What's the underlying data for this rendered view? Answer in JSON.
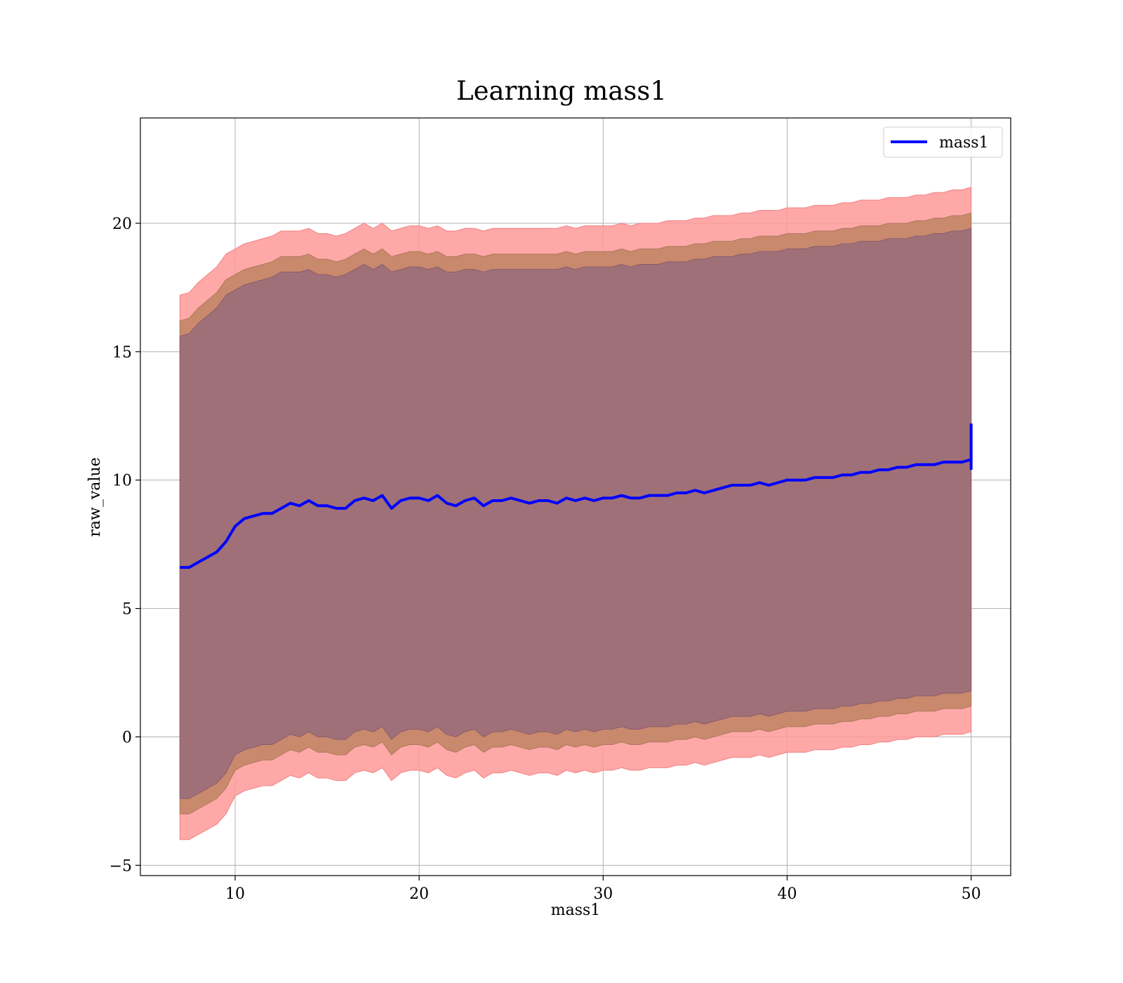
{
  "chart_data": {
    "type": "line",
    "title": "Learning mass1",
    "xlabel": "mass1",
    "ylabel": "raw_value",
    "xlim": [
      4.85,
      52.15
    ],
    "ylim": [
      -5.4,
      24.1
    ],
    "xticks": [
      10,
      20,
      30,
      40,
      50
    ],
    "yticks": [
      -5,
      0,
      5,
      10,
      15,
      20
    ],
    "xtick_labels": [
      "10",
      "20",
      "30",
      "40",
      "50"
    ],
    "ytick_labels": [
      "−5",
      "0",
      "5",
      "10",
      "15",
      "20"
    ],
    "grid": true,
    "legend_position": "upper right",
    "colors": {
      "line": "#0000ff",
      "band_outer": "#ff9999",
      "band_middle": "#c8896c",
      "band_inner": "#a07078",
      "grid": "#b0b0b0"
    },
    "series": [
      {
        "name": "mass1",
        "x": [
          7.0,
          7.5,
          8.0,
          8.5,
          9.0,
          9.5,
          10.0,
          10.5,
          11.0,
          11.5,
          12.0,
          12.5,
          13.0,
          13.5,
          14.0,
          14.5,
          15.0,
          15.5,
          16.0,
          16.5,
          17.0,
          17.5,
          18.0,
          18.5,
          19.0,
          19.5,
          20.0,
          20.5,
          21.0,
          21.5,
          22.0,
          22.5,
          23.0,
          23.5,
          24.0,
          24.5,
          25.0,
          25.5,
          26.0,
          26.5,
          27.0,
          27.5,
          28.0,
          28.5,
          29.0,
          29.5,
          30.0,
          30.5,
          31.0,
          31.5,
          32.0,
          32.5,
          33.0,
          33.5,
          34.0,
          34.5,
          35.0,
          35.5,
          36.0,
          36.5,
          37.0,
          37.5,
          38.0,
          38.5,
          39.0,
          39.5,
          40.0,
          40.5,
          41.0,
          41.5,
          42.0,
          42.5,
          43.0,
          43.5,
          44.0,
          44.5,
          45.0,
          45.5,
          46.0,
          46.5,
          47.0,
          47.5,
          48.0,
          48.5,
          49.0,
          49.5,
          50.0
        ],
        "values": [
          6.6,
          6.6,
          6.8,
          7.0,
          7.2,
          7.6,
          8.2,
          8.5,
          8.6,
          8.7,
          8.7,
          8.9,
          9.1,
          9.0,
          9.2,
          9.0,
          9.0,
          8.9,
          8.9,
          9.2,
          9.3,
          9.2,
          9.4,
          8.9,
          9.2,
          9.3,
          9.3,
          9.2,
          9.4,
          9.1,
          9.0,
          9.2,
          9.3,
          9.0,
          9.2,
          9.2,
          9.3,
          9.2,
          9.1,
          9.2,
          9.2,
          9.1,
          9.3,
          9.2,
          9.3,
          9.2,
          9.3,
          9.3,
          9.4,
          9.3,
          9.3,
          9.4,
          9.4,
          9.4,
          9.5,
          9.5,
          9.6,
          9.5,
          9.6,
          9.7,
          9.8,
          9.8,
          9.8,
          9.9,
          9.8,
          9.9,
          10.0,
          10.0,
          10.0,
          10.1,
          10.1,
          10.1,
          10.2,
          10.2,
          10.3,
          10.3,
          10.4,
          10.4,
          10.5,
          10.5,
          10.6,
          10.6,
          10.6,
          10.7,
          10.7,
          10.7,
          10.8
        ],
        "upper_outer": [
          17.2,
          17.3,
          17.7,
          18.0,
          18.3,
          18.8,
          19.0,
          19.2,
          19.3,
          19.4,
          19.5,
          19.7,
          19.7,
          19.7,
          19.8,
          19.6,
          19.6,
          19.5,
          19.6,
          19.8,
          20.0,
          19.8,
          20.0,
          19.7,
          19.8,
          19.9,
          19.9,
          19.8,
          19.9,
          19.7,
          19.7,
          19.8,
          19.8,
          19.7,
          19.8,
          19.8,
          19.8,
          19.8,
          19.8,
          19.8,
          19.8,
          19.8,
          19.9,
          19.8,
          19.9,
          19.9,
          19.9,
          19.9,
          20.0,
          19.9,
          20.0,
          20.0,
          20.0,
          20.1,
          20.1,
          20.1,
          20.2,
          20.2,
          20.3,
          20.3,
          20.3,
          20.4,
          20.4,
          20.5,
          20.5,
          20.5,
          20.6,
          20.6,
          20.6,
          20.7,
          20.7,
          20.7,
          20.8,
          20.8,
          20.9,
          20.9,
          20.9,
          21.0,
          21.0,
          21.0,
          21.1,
          21.1,
          21.2,
          21.2,
          21.3,
          21.3,
          21.4
        ],
        "upper_middle": [
          16.2,
          16.3,
          16.7,
          17.0,
          17.3,
          17.8,
          18.0,
          18.2,
          18.3,
          18.4,
          18.5,
          18.7,
          18.7,
          18.7,
          18.8,
          18.6,
          18.6,
          18.5,
          18.6,
          18.8,
          19.0,
          18.8,
          19.0,
          18.7,
          18.8,
          18.9,
          18.9,
          18.8,
          18.9,
          18.7,
          18.7,
          18.8,
          18.8,
          18.7,
          18.8,
          18.8,
          18.8,
          18.8,
          18.8,
          18.8,
          18.8,
          18.8,
          18.9,
          18.8,
          18.9,
          18.9,
          18.9,
          18.9,
          19.0,
          18.9,
          19.0,
          19.0,
          19.0,
          19.1,
          19.1,
          19.1,
          19.2,
          19.2,
          19.3,
          19.3,
          19.3,
          19.4,
          19.4,
          19.5,
          19.5,
          19.5,
          19.6,
          19.6,
          19.6,
          19.7,
          19.7,
          19.7,
          19.8,
          19.8,
          19.9,
          19.9,
          19.9,
          20.0,
          20.0,
          20.0,
          20.1,
          20.1,
          20.2,
          20.2,
          20.3,
          20.3,
          20.4
        ],
        "upper_inner": [
          15.6,
          15.7,
          16.1,
          16.4,
          16.7,
          17.2,
          17.4,
          17.6,
          17.7,
          17.8,
          17.9,
          18.1,
          18.1,
          18.1,
          18.2,
          18.0,
          18.0,
          17.9,
          18.0,
          18.2,
          18.4,
          18.2,
          18.4,
          18.1,
          18.2,
          18.3,
          18.3,
          18.2,
          18.3,
          18.1,
          18.1,
          18.2,
          18.2,
          18.1,
          18.2,
          18.2,
          18.2,
          18.2,
          18.2,
          18.2,
          18.2,
          18.2,
          18.3,
          18.2,
          18.3,
          18.3,
          18.3,
          18.3,
          18.4,
          18.3,
          18.4,
          18.4,
          18.4,
          18.5,
          18.5,
          18.5,
          18.6,
          18.6,
          18.7,
          18.7,
          18.7,
          18.8,
          18.8,
          18.9,
          18.9,
          18.9,
          19.0,
          19.0,
          19.0,
          19.1,
          19.1,
          19.1,
          19.2,
          19.2,
          19.3,
          19.3,
          19.3,
          19.4,
          19.4,
          19.4,
          19.5,
          19.5,
          19.6,
          19.6,
          19.7,
          19.7,
          19.8
        ],
        "lower_inner": [
          -2.4,
          -2.4,
          -2.2,
          -2.0,
          -1.8,
          -1.4,
          -0.7,
          -0.5,
          -0.4,
          -0.3,
          -0.3,
          -0.1,
          0.1,
          0.0,
          0.2,
          0.0,
          0.0,
          -0.1,
          -0.1,
          0.2,
          0.3,
          0.2,
          0.4,
          -0.1,
          0.2,
          0.3,
          0.3,
          0.2,
          0.4,
          0.1,
          0.0,
          0.2,
          0.3,
          0.0,
          0.2,
          0.2,
          0.3,
          0.2,
          0.1,
          0.2,
          0.2,
          0.1,
          0.3,
          0.2,
          0.3,
          0.2,
          0.3,
          0.3,
          0.4,
          0.3,
          0.3,
          0.4,
          0.4,
          0.4,
          0.5,
          0.5,
          0.6,
          0.5,
          0.6,
          0.7,
          0.8,
          0.8,
          0.8,
          0.9,
          0.8,
          0.9,
          1.0,
          1.0,
          1.0,
          1.1,
          1.1,
          1.1,
          1.2,
          1.2,
          1.3,
          1.3,
          1.4,
          1.4,
          1.5,
          1.5,
          1.6,
          1.6,
          1.6,
          1.7,
          1.7,
          1.7,
          1.8
        ],
        "lower_middle": [
          -3.0,
          -3.0,
          -2.8,
          -2.6,
          -2.4,
          -2.0,
          -1.3,
          -1.1,
          -1.0,
          -0.9,
          -0.9,
          -0.7,
          -0.5,
          -0.6,
          -0.4,
          -0.6,
          -0.6,
          -0.7,
          -0.7,
          -0.4,
          -0.3,
          -0.4,
          -0.2,
          -0.7,
          -0.4,
          -0.3,
          -0.3,
          -0.4,
          -0.2,
          -0.5,
          -0.6,
          -0.4,
          -0.3,
          -0.6,
          -0.4,
          -0.4,
          -0.3,
          -0.4,
          -0.5,
          -0.4,
          -0.4,
          -0.5,
          -0.3,
          -0.4,
          -0.3,
          -0.4,
          -0.3,
          -0.3,
          -0.2,
          -0.3,
          -0.3,
          -0.2,
          -0.2,
          -0.2,
          -0.1,
          -0.1,
          0.0,
          -0.1,
          0.0,
          0.1,
          0.2,
          0.2,
          0.2,
          0.3,
          0.2,
          0.3,
          0.4,
          0.4,
          0.4,
          0.5,
          0.5,
          0.5,
          0.6,
          0.6,
          0.7,
          0.7,
          0.8,
          0.8,
          0.9,
          0.9,
          1.0,
          1.0,
          1.0,
          1.1,
          1.1,
          1.1,
          1.2
        ],
        "lower_outer": [
          -4.0,
          -4.0,
          -3.8,
          -3.6,
          -3.4,
          -3.0,
          -2.3,
          -2.1,
          -2.0,
          -1.9,
          -1.9,
          -1.7,
          -1.5,
          -1.6,
          -1.4,
          -1.6,
          -1.6,
          -1.7,
          -1.7,
          -1.4,
          -1.3,
          -1.4,
          -1.2,
          -1.7,
          -1.4,
          -1.3,
          -1.3,
          -1.4,
          -1.2,
          -1.5,
          -1.6,
          -1.4,
          -1.3,
          -1.6,
          -1.4,
          -1.4,
          -1.3,
          -1.4,
          -1.5,
          -1.4,
          -1.4,
          -1.5,
          -1.3,
          -1.4,
          -1.3,
          -1.4,
          -1.3,
          -1.3,
          -1.2,
          -1.3,
          -1.3,
          -1.2,
          -1.2,
          -1.2,
          -1.1,
          -1.1,
          -1.0,
          -1.1,
          -1.0,
          -0.9,
          -0.8,
          -0.8,
          -0.8,
          -0.7,
          -0.8,
          -0.7,
          -0.6,
          -0.6,
          -0.6,
          -0.5,
          -0.5,
          -0.5,
          -0.4,
          -0.4,
          -0.3,
          -0.3,
          -0.2,
          -0.2,
          -0.1,
          -0.1,
          0.0,
          0.0,
          0.0,
          0.1,
          0.1,
          0.1,
          0.2
        ]
      }
    ],
    "line_end_spike": {
      "x": 50.0,
      "y_from": 10.4,
      "y_to": 12.2
    }
  }
}
